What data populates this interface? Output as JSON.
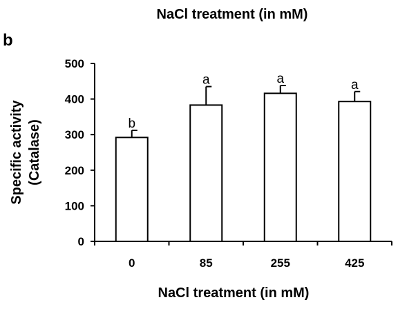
{
  "top_caption": "NaCl treatment (in mM)",
  "panel_label": "b",
  "chart_data": {
    "type": "bar",
    "categories": [
      "0",
      "85",
      "255",
      "425"
    ],
    "values": [
      292,
      383,
      416,
      393
    ],
    "error": [
      20,
      52,
      22,
      28
    ],
    "significance_letters": [
      "b",
      "a",
      "a",
      "a"
    ],
    "ylabel": [
      "Specific activity",
      "(Catalase)"
    ],
    "xlabel": "NaCl treatment (in mM)",
    "ylim": [
      0,
      500
    ],
    "yticks": [
      0,
      100,
      200,
      300,
      400,
      500
    ],
    "grid": false,
    "legend": "none",
    "bar_fill": "#ffffff",
    "bar_stroke": "#000000"
  }
}
